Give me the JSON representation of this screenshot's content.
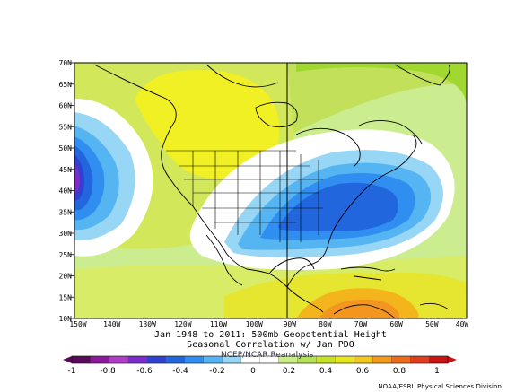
{
  "map": {
    "lat_labels": [
      "70N",
      "65N",
      "60N",
      "55N",
      "50N",
      "45N",
      "40N",
      "35N",
      "30N",
      "25N",
      "20N",
      "15N",
      "10N"
    ],
    "lon_labels": [
      "150W",
      "140W",
      "130W",
      "120W",
      "110W",
      "100W",
      "90W",
      "80W",
      "70W",
      "60W",
      "50W",
      "40W"
    ],
    "title_line1": "Jan 1948 to 2011: 500mb Geopotential Height",
    "title_line2": "Seasonal Correlation w/ Jan PDO",
    "watermark": "NCEP/NCAR Reanalysis"
  },
  "colorbar": {
    "tick_labels": [
      "-1",
      "-0.8",
      "-0.6",
      "-0.4",
      "-0.2",
      "0",
      "0.2",
      "0.4",
      "0.6",
      "0.8",
      "1"
    ],
    "colors": [
      "#5a0a5a",
      "#8b1a9b",
      "#b03cc8",
      "#7a2dc8",
      "#3040d0",
      "#2266dd",
      "#2f8ef0",
      "#55b4f2",
      "#98d6f5",
      "#ffffff",
      "#ffffff",
      "#ccee88",
      "#b4e05a",
      "#c8e028",
      "#e6e620",
      "#f0c820",
      "#f09a1e",
      "#ec6c1e",
      "#e03c1e",
      "#c81414"
    ]
  },
  "credit": "NOAA/ESRL Physical Sciences Division"
}
